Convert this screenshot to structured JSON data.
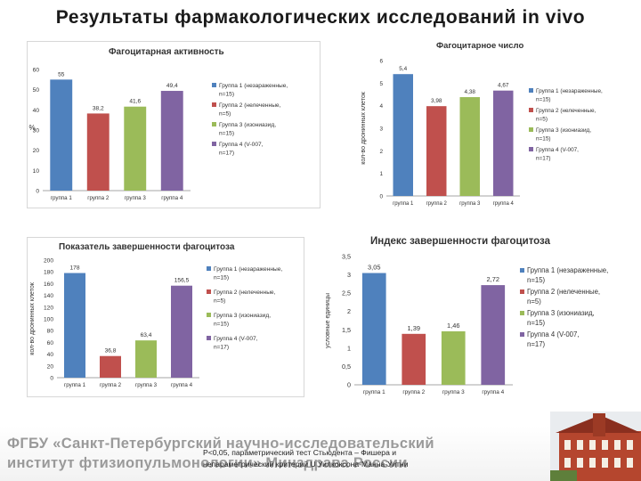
{
  "page": {
    "title": "Результаты фармакологических исследований in vivo"
  },
  "chart_data": [
    {
      "type": "bar",
      "title": "Фагоцитарная активность",
      "ylabel": "%",
      "ylim": [
        0,
        60
      ],
      "yticks": [
        0,
        10,
        20,
        30,
        40,
        50,
        60
      ],
      "categories": [
        "группа 1",
        "группа 2",
        "группа 3",
        "группа 4"
      ],
      "values": [
        55,
        38.2,
        41.6,
        49.4
      ],
      "value_labels": [
        "55",
        "38,2",
        "41,6",
        "49,4"
      ],
      "colors": [
        "#4f81bd",
        "#c0504d",
        "#9bbb59",
        "#8064a2"
      ],
      "legend": [
        "Группа 1 (незараженные, n=15)",
        "Группа 2 (нелеченные, n=5)",
        "Группа 3 (изониазид, n=15)",
        "Группа 4 (V-007, n=17)"
      ],
      "grid": false
    },
    {
      "type": "bar",
      "title": "Фагоцитарное число",
      "ylabel": "кол-во дронинных клеток",
      "ylim": [
        0,
        6
      ],
      "yticks": [
        0,
        1,
        2,
        3,
        4,
        5,
        6
      ],
      "categories": [
        "группа 1",
        "группа 2",
        "группа 3",
        "группа 4"
      ],
      "values": [
        5.4,
        3.98,
        4.38,
        4.67
      ],
      "value_labels": [
        "5,4",
        "3,98",
        "4,38",
        "4,67"
      ],
      "colors": [
        "#4f81bd",
        "#c0504d",
        "#9bbb59",
        "#8064a2"
      ],
      "legend": [
        "Группа 1 (незараженные, n=15)",
        "Группа 2 (нелеченные, n=5)",
        "Группа 3 (изониазид, n=15)",
        "Группа 4 (V-007, n=17)"
      ],
      "grid": false
    },
    {
      "type": "bar",
      "title": "Показатель завершенности фагоцитоза",
      "ylabel": "кол-во дронинных клеток",
      "ylim": [
        0,
        200
      ],
      "yticks": [
        0,
        20,
        40,
        60,
        80,
        100,
        120,
        140,
        160,
        180,
        200
      ],
      "categories": [
        "группа 1",
        "группа 2",
        "группа 3",
        "группа 4"
      ],
      "values": [
        178,
        36.8,
        63.4,
        156.5
      ],
      "value_labels": [
        "178",
        "36,8",
        "63,4",
        "156,5"
      ],
      "colors": [
        "#4f81bd",
        "#c0504d",
        "#9bbb59",
        "#8064a2"
      ],
      "legend": [
        "Группа 1 (незараженные, n=15)",
        "Группа 2 (нелеченные, n=5)",
        "Группа 3 (изониазид, n=15)",
        "Группа 4 (V-007, n=17)"
      ],
      "grid": false
    },
    {
      "type": "bar",
      "title": "Индекс завершенности фагоцитоза",
      "ylabel": "условные единицы",
      "ylim": [
        0,
        3.5
      ],
      "yticks": [
        0,
        0.5,
        1,
        1.5,
        2,
        2.5,
        3,
        3.5
      ],
      "ytick_labels": [
        "0",
        "0,5",
        "1",
        "1,5",
        "2",
        "2,5",
        "3",
        "3,5"
      ],
      "categories": [
        "группа 1",
        "группа 2",
        "группа 3",
        "группа 4"
      ],
      "values": [
        3.05,
        1.39,
        1.46,
        2.72
      ],
      "value_labels": [
        "3,05",
        "1,39",
        "1,46",
        "2,72"
      ],
      "colors": [
        "#4f81bd",
        "#c0504d",
        "#9bbb59",
        "#8064a2"
      ],
      "legend": [
        "Группа 1 (незараженные, n=15)",
        "Группа 2 (нелеченные, n=5)",
        "Группа 3 (изониазид, n=15)",
        "Группа 4 (V-007, n=17)"
      ],
      "grid": false
    }
  ],
  "footnote": {
    "line1": "P<0,05, параметрический тест Стьюдента – Фишера и",
    "line2": "непараметрический критерий U Уилкоксона-Манна-Уитни"
  },
  "institute": {
    "line1": "ФГБУ «Санкт-Петербургский научно-исследовательский",
    "line2": "институт фтизиопульмонологии» Минздрава России"
  }
}
